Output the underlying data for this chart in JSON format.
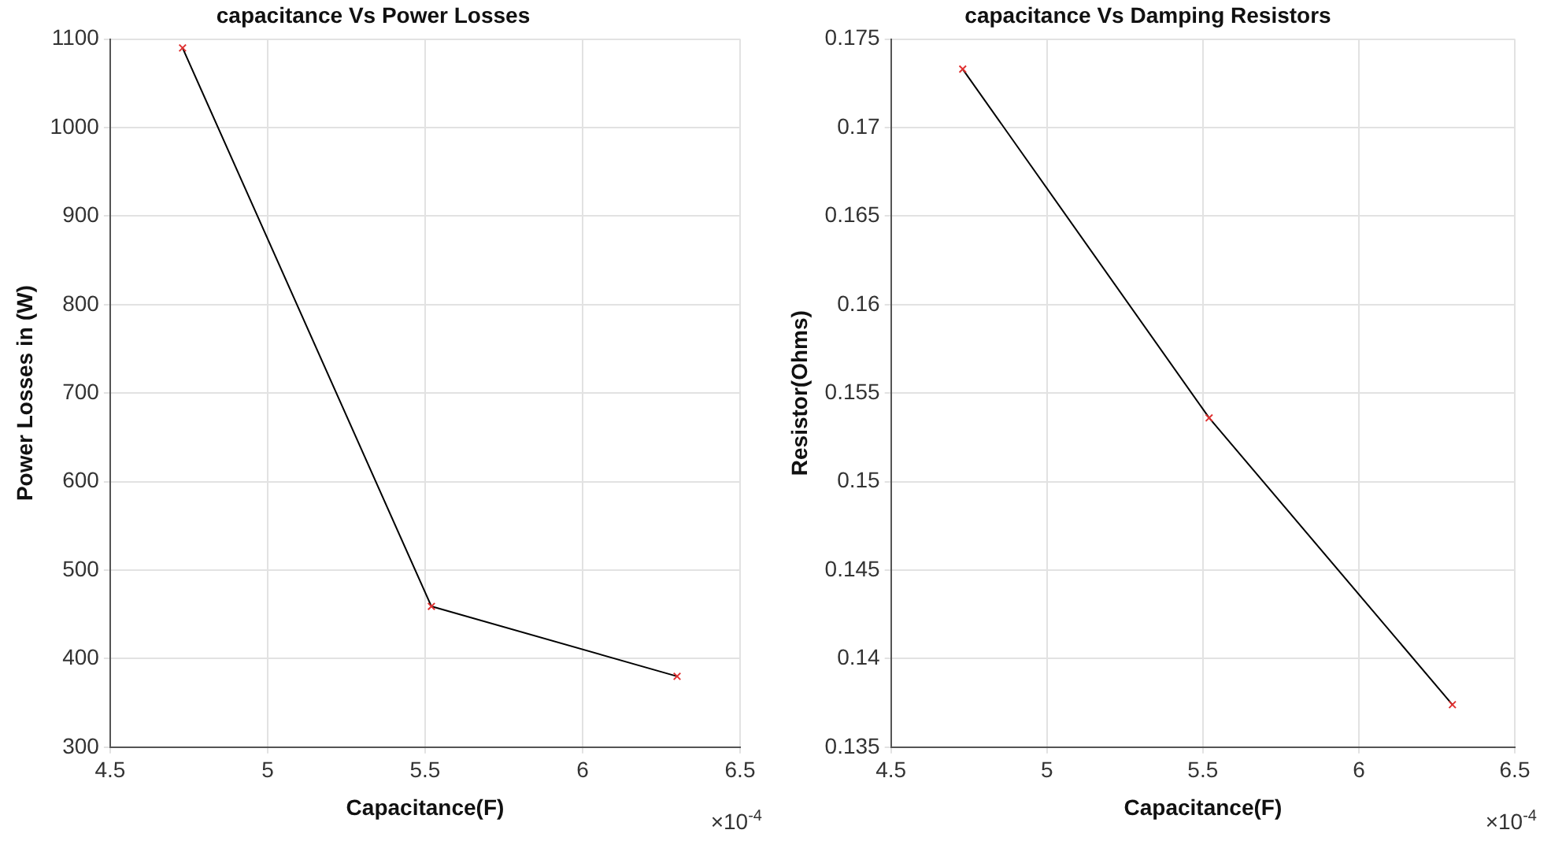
{
  "chart_data": [
    {
      "type": "line",
      "title": "capacitance Vs Power Losses",
      "xlabel": "Capacitance(F)",
      "ylabel": "Power Losses in (W)",
      "x": [
        4.73,
        5.52,
        6.3
      ],
      "series": [
        {
          "color": "#000000",
          "colors": [
            "#e03030",
            "#e03030",
            "#e03030"
          ],
          "values": [
            1090,
            459,
            380
          ]
        }
      ],
      "xlim": [
        4.5,
        6.5
      ],
      "xticks": [
        4.5,
        5,
        5.5,
        6,
        6.5
      ],
      "ylim": [
        300,
        1100
      ],
      "yticks": [
        300,
        400,
        500,
        600,
        700,
        800,
        900,
        1000,
        1100
      ],
      "grid": true,
      "marker": "cross",
      "line_style": "solid",
      "annotations": [
        "×10$^{-4}$"
      ]
    },
    {
      "type": "line",
      "title": "capacitance Vs Damping Resistors",
      "xlabel": "Capacitance(F)",
      "ylabel": "Resistor(Ohms)",
      "x": [
        4.73,
        5.52,
        6.3
      ],
      "series": [
        {
          "color": "#000000",
          "colors": [
            "#e03030",
            "#e03030",
            "#e03030"
          ],
          "values": [
            0.1733,
            0.1536,
            0.1374
          ]
        }
      ],
      "xlim": [
        4.5,
        6.5
      ],
      "xticks": [
        4.5,
        5,
        5.5,
        6,
        6.5
      ],
      "ylim": [
        0.135,
        0.175
      ],
      "yticks": [
        0.135,
        0.14,
        0.145,
        0.15,
        0.155,
        0.16,
        0.165,
        0.17,
        0.175
      ],
      "grid": true,
      "marker": "cross",
      "line_style": "solid",
      "annotations": [
        "×10$^{-4}$"
      ]
    }
  ]
}
